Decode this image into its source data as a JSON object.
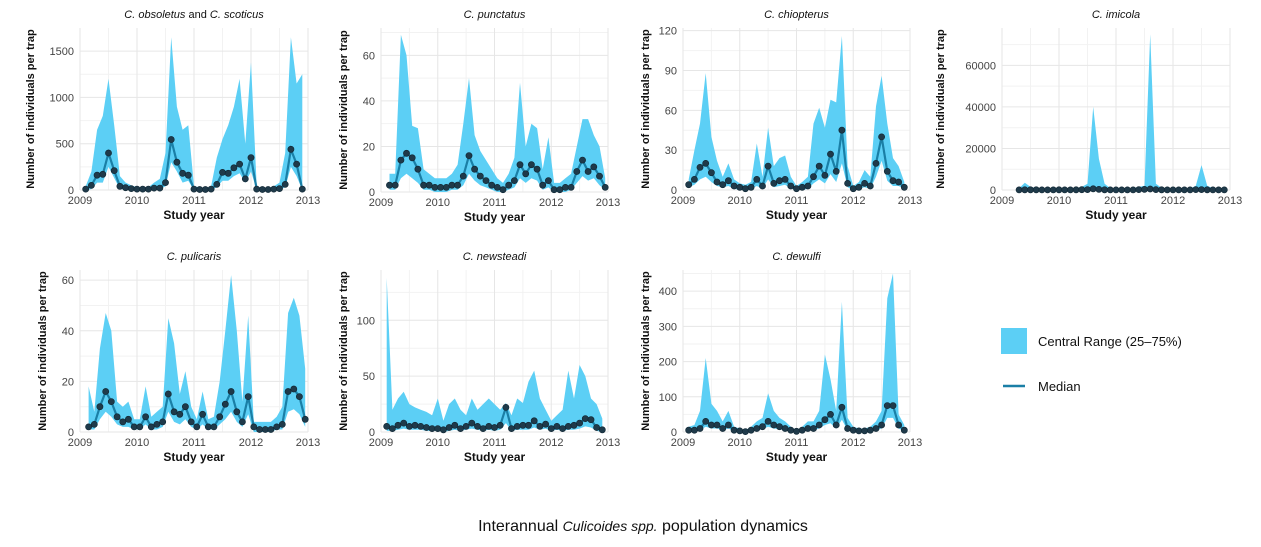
{
  "caption": {
    "prefix": "Interannual",
    "italic": "Culicoides spp.",
    "suffix": "population dynamics"
  },
  "legend": {
    "band_label": "Central Range (25–75%)",
    "median_label": "Median",
    "band_color": "#5ccff5",
    "line_color": "#1a7fa6",
    "point_color": "#1f3a4a"
  },
  "chart_data": [
    {
      "type": "area",
      "title_parts": [
        {
          "text": "C. obsoletus",
          "italic": true
        },
        {
          "text": " and ",
          "italic": false
        },
        {
          "text": "C. scoticus",
          "italic": true
        }
      ],
      "xlabel": "Study year",
      "ylabel": "Number of individuals per trap",
      "xlim": [
        2009,
        2013
      ],
      "ylim": [
        0,
        1750
      ],
      "x_ticks": [
        2009,
        2010,
        2011,
        2012,
        2013
      ],
      "y_ticks": [
        0,
        500,
        1000,
        1500
      ],
      "x": [
        2009.1,
        2009.2,
        2009.3,
        2009.4,
        2009.5,
        2009.6,
        2009.7,
        2009.8,
        2009.9,
        2010.0,
        2010.1,
        2010.2,
        2010.3,
        2010.4,
        2010.5,
        2010.6,
        2010.7,
        2010.8,
        2010.9,
        2011.0,
        2011.1,
        2011.2,
        2011.3,
        2011.4,
        2011.5,
        2011.6,
        2011.7,
        2011.8,
        2011.9,
        2012.0,
        2012.1,
        2012.2,
        2012.3,
        2012.4,
        2012.5,
        2012.6,
        2012.7,
        2012.8,
        2012.9
      ],
      "median": [
        10,
        50,
        160,
        170,
        400,
        210,
        40,
        25,
        15,
        10,
        10,
        10,
        20,
        20,
        80,
        545,
        300,
        180,
        160,
        10,
        5,
        5,
        10,
        60,
        190,
        180,
        240,
        280,
        120,
        350,
        10,
        5,
        5,
        10,
        15,
        60,
        440,
        280,
        10
      ],
      "q1": [
        0,
        10,
        80,
        80,
        250,
        130,
        10,
        5,
        0,
        0,
        0,
        0,
        0,
        5,
        40,
        300,
        200,
        80,
        100,
        0,
        0,
        0,
        0,
        30,
        100,
        100,
        150,
        180,
        80,
        200,
        0,
        0,
        0,
        0,
        0,
        30,
        250,
        150,
        0
      ],
      "q3": [
        40,
        200,
        650,
        800,
        1200,
        700,
        150,
        80,
        50,
        30,
        30,
        30,
        80,
        120,
        400,
        1650,
        900,
        650,
        700,
        40,
        30,
        20,
        40,
        350,
        550,
        700,
        900,
        1200,
        500,
        1380,
        40,
        20,
        20,
        40,
        80,
        400,
        1650,
        1150,
        1250
      ]
    },
    {
      "type": "area",
      "title_parts": [
        {
          "text": "C. punctatus",
          "italic": true
        }
      ],
      "xlabel": "Study year",
      "ylabel": "Number of individuals per trap",
      "xlim": [
        2009,
        2013
      ],
      "ylim": [
        0,
        72
      ],
      "x_ticks": [
        2009,
        2010,
        2011,
        2012,
        2013
      ],
      "y_ticks": [
        0,
        20,
        40,
        60
      ],
      "x": [
        2009.15,
        2009.25,
        2009.35,
        2009.45,
        2009.55,
        2009.65,
        2009.75,
        2009.85,
        2009.95,
        2010.05,
        2010.15,
        2010.25,
        2010.35,
        2010.45,
        2010.55,
        2010.65,
        2010.75,
        2010.85,
        2010.95,
        2011.05,
        2011.15,
        2011.25,
        2011.35,
        2011.45,
        2011.55,
        2011.65,
        2011.75,
        2011.85,
        2011.95,
        2012.05,
        2012.15,
        2012.25,
        2012.35,
        2012.45,
        2012.55,
        2012.65,
        2012.75,
        2012.85,
        2012.95
      ],
      "median": [
        3,
        3,
        14,
        17,
        15,
        10,
        3,
        3,
        2,
        2,
        2,
        3,
        3,
        7,
        16,
        10,
        7,
        5,
        3,
        2,
        1,
        3,
        5,
        12,
        8,
        12,
        10,
        3,
        5,
        1,
        1,
        2,
        2,
        9,
        14,
        9,
        11,
        7,
        2
      ],
      "q1": [
        1,
        1,
        6,
        8,
        6,
        4,
        1,
        1,
        0,
        0,
        0,
        1,
        1,
        3,
        8,
        5,
        3,
        2,
        1,
        0,
        0,
        1,
        2,
        6,
        4,
        6,
        5,
        1,
        2,
        0,
        0,
        0,
        1,
        4,
        7,
        5,
        6,
        3,
        1
      ],
      "q3": [
        8,
        8,
        69,
        60,
        29,
        28,
        10,
        8,
        6,
        6,
        6,
        8,
        12,
        30,
        50,
        25,
        18,
        14,
        10,
        6,
        4,
        8,
        15,
        48,
        20,
        30,
        28,
        10,
        24,
        4,
        4,
        6,
        8,
        20,
        32,
        32,
        25,
        20,
        6
      ]
    },
    {
      "type": "area",
      "title_parts": [
        {
          "text": "C. chiopterus",
          "italic": true
        }
      ],
      "xlabel": "Study year",
      "ylabel": "Number of individuals per trap",
      "xlim": [
        2009,
        2013
      ],
      "ylim": [
        0,
        122
      ],
      "x_ticks": [
        2009,
        2010,
        2011,
        2012,
        2013
      ],
      "y_ticks": [
        0,
        30,
        60,
        90,
        120
      ],
      "x": [
        2009.1,
        2009.2,
        2009.3,
        2009.4,
        2009.5,
        2009.6,
        2009.7,
        2009.8,
        2009.9,
        2010.0,
        2010.1,
        2010.2,
        2010.3,
        2010.4,
        2010.5,
        2010.6,
        2010.7,
        2010.8,
        2010.9,
        2011.0,
        2011.1,
        2011.2,
        2011.3,
        2011.4,
        2011.5,
        2011.6,
        2011.7,
        2011.8,
        2011.9,
        2012.0,
        2012.1,
        2012.2,
        2012.3,
        2012.4,
        2012.5,
        2012.6,
        2012.7,
        2012.8,
        2012.9
      ],
      "median": [
        4,
        8,
        17,
        20,
        13,
        6,
        4,
        7,
        3,
        2,
        1,
        2,
        8,
        3,
        18,
        5,
        7,
        8,
        3,
        1,
        2,
        3,
        10,
        18,
        11,
        27,
        14,
        45,
        5,
        1,
        2,
        5,
        3,
        20,
        40,
        14,
        7,
        6,
        2
      ],
      "q1": [
        2,
        4,
        8,
        10,
        6,
        3,
        2,
        3,
        1,
        0,
        0,
        1,
        3,
        1,
        8,
        2,
        3,
        4,
        1,
        0,
        0,
        1,
        5,
        8,
        5,
        12,
        6,
        20,
        2,
        0,
        1,
        2,
        1,
        10,
        22,
        7,
        3,
        3,
        1
      ],
      "q3": [
        8,
        30,
        50,
        88,
        40,
        22,
        10,
        20,
        8,
        5,
        4,
        6,
        35,
        10,
        47,
        18,
        24,
        26,
        10,
        3,
        6,
        10,
        50,
        62,
        47,
        68,
        66,
        116,
        18,
        3,
        6,
        15,
        10,
        63,
        86,
        50,
        24,
        18,
        6
      ]
    },
    {
      "type": "area",
      "title_parts": [
        {
          "text": "C. imicola",
          "italic": true
        }
      ],
      "xlabel": "Study year",
      "ylabel": "Number of individuals per trap",
      "xlim": [
        2009,
        2013
      ],
      "ylim": [
        0,
        78000
      ],
      "x_ticks": [
        2009,
        2010,
        2011,
        2012,
        2013
      ],
      "y_ticks": [
        0,
        20000,
        40000,
        60000
      ],
      "x": [
        2009.3,
        2009.4,
        2009.5,
        2009.6,
        2009.7,
        2009.8,
        2009.9,
        2010.0,
        2010.1,
        2010.2,
        2010.3,
        2010.4,
        2010.5,
        2010.6,
        2010.7,
        2010.8,
        2010.9,
        2011.0,
        2011.1,
        2011.2,
        2011.3,
        2011.4,
        2011.5,
        2011.6,
        2011.7,
        2011.8,
        2011.9,
        2012.0,
        2012.1,
        2012.2,
        2012.3,
        2012.4,
        2012.5,
        2012.6,
        2012.7,
        2012.8,
        2012.9
      ],
      "median": [
        50,
        100,
        120,
        80,
        60,
        60,
        60,
        80,
        60,
        60,
        80,
        150,
        200,
        600,
        300,
        120,
        60,
        40,
        40,
        40,
        60,
        200,
        300,
        500,
        200,
        100,
        60,
        40,
        40,
        40,
        60,
        200,
        200,
        100,
        60,
        40,
        40
      ],
      "q1": [
        0,
        0,
        0,
        0,
        0,
        0,
        0,
        0,
        0,
        0,
        0,
        0,
        0,
        0,
        0,
        0,
        0,
        0,
        0,
        0,
        0,
        0,
        0,
        0,
        0,
        0,
        0,
        0,
        0,
        0,
        0,
        0,
        0,
        0,
        0,
        0,
        0
      ],
      "q3": [
        800,
        3500,
        1500,
        800,
        600,
        500,
        500,
        600,
        500,
        500,
        700,
        1500,
        3000,
        40000,
        15000,
        3000,
        800,
        500,
        500,
        500,
        800,
        1500,
        2000,
        75000,
        3000,
        1000,
        600,
        500,
        500,
        500,
        600,
        2000,
        12000,
        2000,
        800,
        500,
        400
      ]
    },
    {
      "type": "area",
      "title_parts": [
        {
          "text": "C. pulicaris",
          "italic": true
        }
      ],
      "xlabel": "Study year",
      "ylabel": "Number of individuals per trap",
      "xlim": [
        2009,
        2013
      ],
      "ylim": [
        0,
        64
      ],
      "x_ticks": [
        2009,
        2010,
        2011,
        2012,
        2013
      ],
      "y_ticks": [
        0,
        20,
        40,
        60
      ],
      "x": [
        2009.15,
        2009.25,
        2009.35,
        2009.45,
        2009.55,
        2009.65,
        2009.75,
        2009.85,
        2009.95,
        2010.05,
        2010.15,
        2010.25,
        2010.35,
        2010.45,
        2010.55,
        2010.65,
        2010.75,
        2010.85,
        2010.95,
        2011.05,
        2011.15,
        2011.25,
        2011.35,
        2011.45,
        2011.55,
        2011.65,
        2011.75,
        2011.85,
        2011.95,
        2012.05,
        2012.15,
        2012.25,
        2012.35,
        2012.45,
        2012.55,
        2012.65,
        2012.75,
        2012.85,
        2012.95
      ],
      "median": [
        2,
        3,
        10,
        16,
        12,
        6,
        4,
        5,
        2,
        2,
        6,
        2,
        3,
        4,
        15,
        8,
        7,
        10,
        4,
        2,
        7,
        2,
        2,
        6,
        11,
        16,
        8,
        4,
        14,
        2,
        1,
        1,
        1,
        2,
        3,
        16,
        17,
        14,
        5
      ],
      "q1": [
        1,
        1,
        5,
        8,
        6,
        3,
        2,
        2,
        1,
        1,
        3,
        1,
        1,
        2,
        8,
        4,
        3,
        5,
        2,
        1,
        3,
        1,
        1,
        3,
        5,
        8,
        4,
        2,
        7,
        0,
        0,
        0,
        0,
        1,
        1,
        8,
        9,
        7,
        2
      ],
      "q3": [
        18,
        8,
        33,
        47,
        40,
        12,
        10,
        12,
        5,
        5,
        18,
        6,
        8,
        10,
        45,
        35,
        15,
        24,
        10,
        5,
        16,
        5,
        6,
        20,
        40,
        62,
        40,
        12,
        46,
        4,
        4,
        4,
        4,
        6,
        10,
        47,
        53,
        46,
        25
      ]
    },
    {
      "type": "area",
      "title_parts": [
        {
          "text": "C. newsteadi",
          "italic": true
        }
      ],
      "xlabel": "Study year",
      "ylabel": "Number of individuals per trap",
      "xlim": [
        2009,
        2013
      ],
      "ylim": [
        0,
        145
      ],
      "x_ticks": [
        2009,
        2010,
        2011,
        2012,
        2013
      ],
      "y_ticks": [
        0,
        50,
        100
      ],
      "x": [
        2009.1,
        2009.2,
        2009.3,
        2009.4,
        2009.5,
        2009.6,
        2009.7,
        2009.8,
        2009.9,
        2010.0,
        2010.1,
        2010.2,
        2010.3,
        2010.4,
        2010.5,
        2010.6,
        2010.7,
        2010.8,
        2010.9,
        2011.0,
        2011.1,
        2011.2,
        2011.3,
        2011.4,
        2011.5,
        2011.6,
        2011.7,
        2011.8,
        2011.9,
        2012.0,
        2012.1,
        2012.2,
        2012.3,
        2012.4,
        2012.5,
        2012.6,
        2012.7,
        2012.8,
        2012.9
      ],
      "median": [
        5,
        3,
        6,
        8,
        5,
        6,
        5,
        4,
        3,
        3,
        2,
        4,
        6,
        3,
        5,
        8,
        5,
        3,
        5,
        4,
        6,
        22,
        3,
        5,
        6,
        6,
        10,
        5,
        7,
        3,
        5,
        3,
        5,
        6,
        8,
        12,
        11,
        4,
        2
      ],
      "q1": [
        1,
        1,
        2,
        3,
        2,
        2,
        2,
        1,
        1,
        1,
        0,
        1,
        2,
        1,
        2,
        3,
        2,
        1,
        2,
        1,
        2,
        8,
        1,
        2,
        2,
        2,
        4,
        2,
        3,
        1,
        2,
        1,
        2,
        2,
        3,
        5,
        4,
        1,
        0
      ],
      "q3": [
        138,
        20,
        30,
        36,
        25,
        22,
        20,
        18,
        15,
        30,
        10,
        25,
        30,
        20,
        15,
        30,
        20,
        25,
        30,
        25,
        20,
        26,
        15,
        30,
        26,
        45,
        55,
        30,
        20,
        10,
        15,
        20,
        55,
        30,
        60,
        50,
        30,
        25,
        12
      ]
    },
    {
      "type": "area",
      "title_parts": [
        {
          "text": "C. dewulfi",
          "italic": true
        }
      ],
      "xlabel": "Study year",
      "ylabel": "Number of individuals per trap",
      "xlim": [
        2009,
        2013
      ],
      "ylim": [
        0,
        460
      ],
      "x_ticks": [
        2009,
        2010,
        2011,
        2012,
        2013
      ],
      "y_ticks": [
        0,
        100,
        200,
        300,
        400
      ],
      "x": [
        2009.1,
        2009.2,
        2009.3,
        2009.4,
        2009.5,
        2009.6,
        2009.7,
        2009.8,
        2009.9,
        2010.0,
        2010.1,
        2010.2,
        2010.3,
        2010.4,
        2010.5,
        2010.6,
        2010.7,
        2010.8,
        2010.9,
        2011.0,
        2011.1,
        2011.2,
        2011.3,
        2011.4,
        2011.5,
        2011.6,
        2011.7,
        2011.8,
        2011.9,
        2012.0,
        2012.1,
        2012.2,
        2012.3,
        2012.4,
        2012.5,
        2012.6,
        2012.7,
        2012.8,
        2012.9
      ],
      "median": [
        5,
        5,
        10,
        30,
        20,
        20,
        10,
        20,
        5,
        3,
        1,
        5,
        10,
        15,
        30,
        20,
        15,
        10,
        5,
        2,
        5,
        10,
        10,
        20,
        35,
        50,
        20,
        70,
        10,
        5,
        3,
        3,
        5,
        10,
        20,
        75,
        75,
        20,
        5
      ],
      "q1": [
        1,
        1,
        5,
        15,
        10,
        10,
        5,
        10,
        2,
        1,
        0,
        2,
        5,
        8,
        15,
        10,
        8,
        5,
        2,
        0,
        2,
        5,
        5,
        10,
        20,
        25,
        10,
        35,
        5,
        2,
        1,
        1,
        2,
        5,
        10,
        40,
        40,
        10,
        2
      ],
      "q3": [
        15,
        20,
        60,
        210,
        80,
        60,
        30,
        60,
        15,
        10,
        5,
        15,
        30,
        40,
        110,
        60,
        40,
        30,
        15,
        5,
        15,
        30,
        30,
        60,
        220,
        150,
        60,
        370,
        40,
        15,
        10,
        10,
        15,
        30,
        60,
        380,
        450,
        50,
        20
      ]
    }
  ]
}
